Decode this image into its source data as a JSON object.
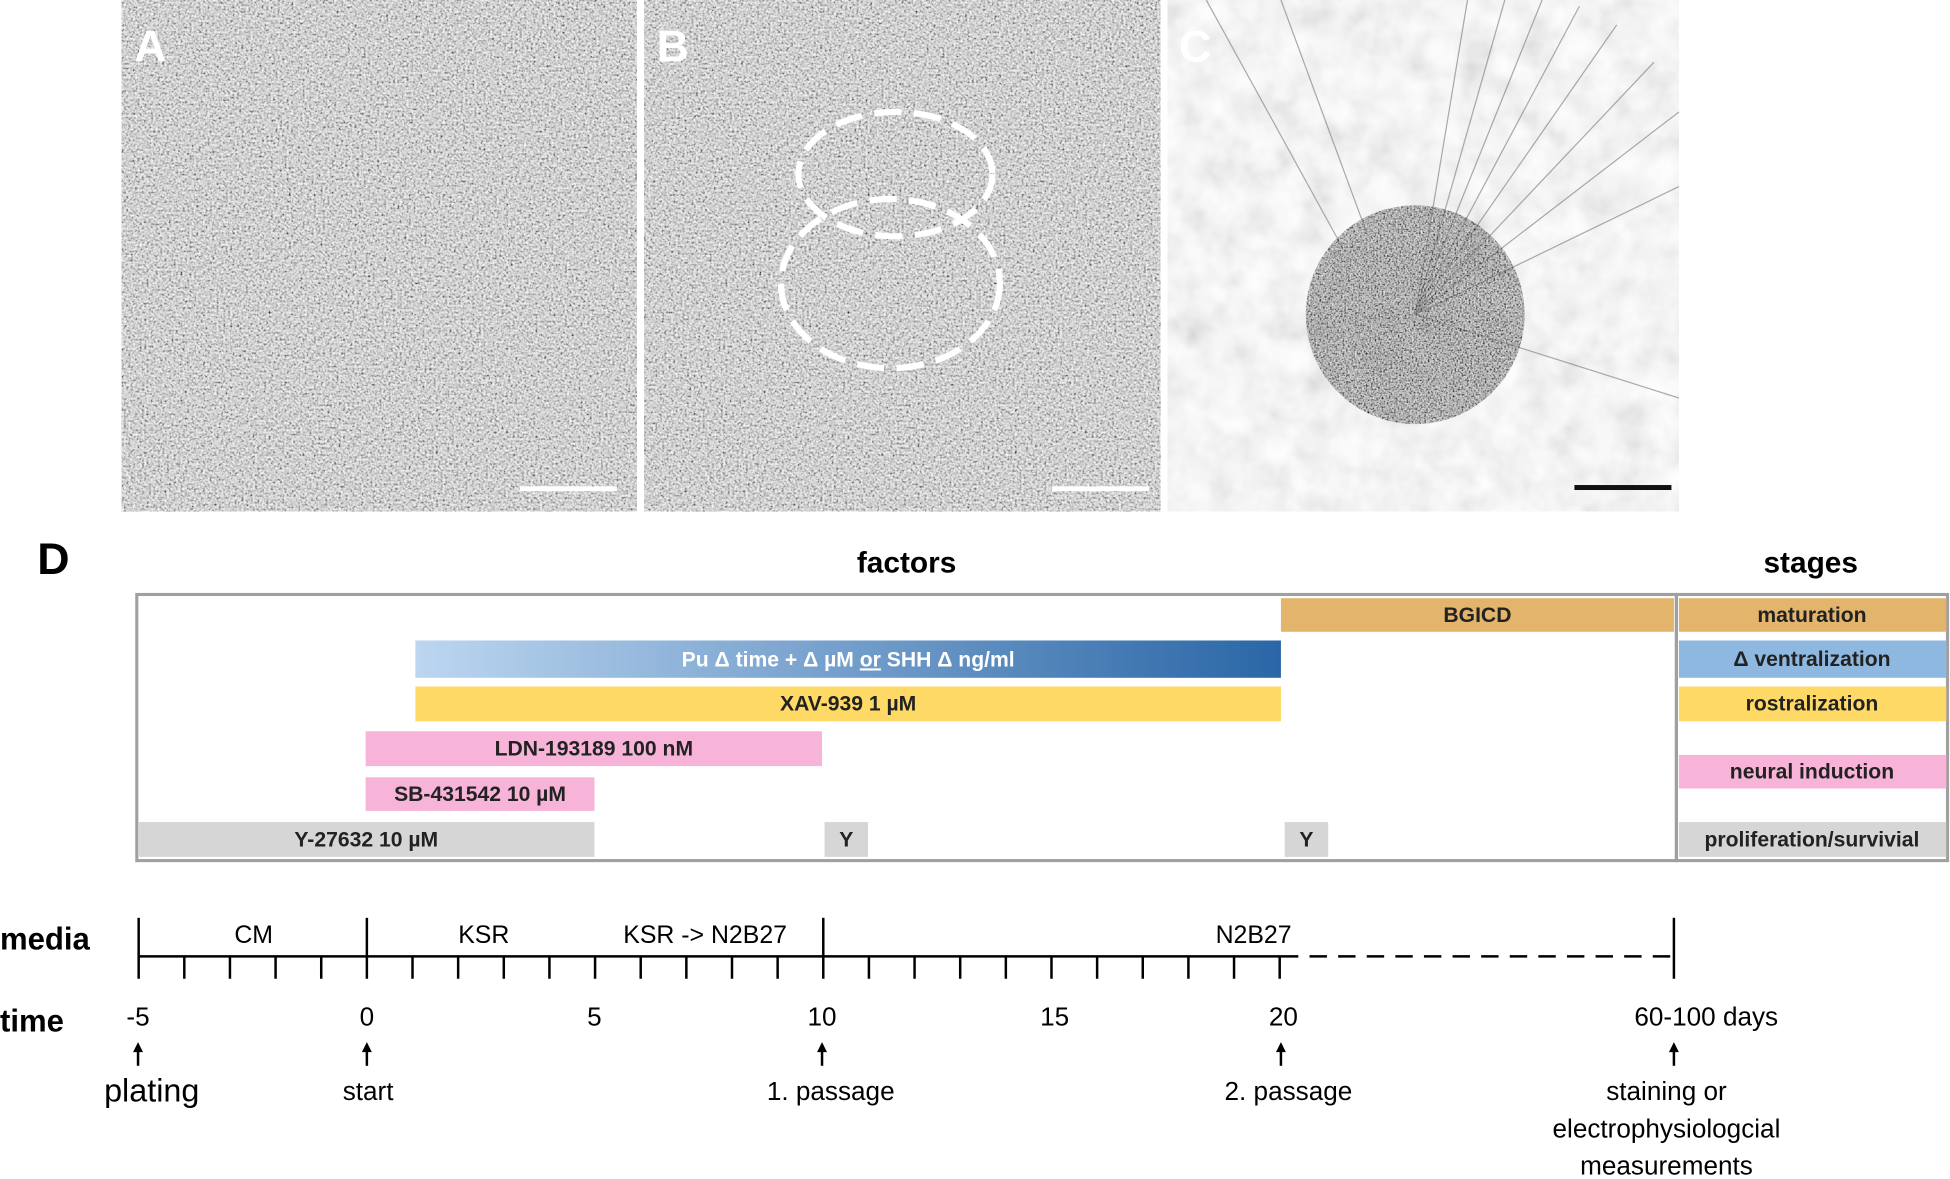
{
  "panels": {
    "a": "A",
    "b": "B",
    "c": "C",
    "d": "D"
  },
  "factors_heading": "factors",
  "stages_heading": "stages",
  "factors": [
    {
      "label": "BGICD"
    },
    {
      "label_parts": [
        "Pu Δ time + Δ µM ",
        "or",
        " SHH Δ ng/ml"
      ]
    },
    {
      "label": "XAV-939 1 µM"
    },
    {
      "label": "LDN-193189 100 nM"
    },
    {
      "label": "SB-431542 10 µM"
    },
    {
      "label": "Y-27632 10 µM"
    },
    {
      "label": "Y"
    },
    {
      "label": "Y"
    }
  ],
  "stages": [
    "maturation",
    "Δ ventralization",
    "rostralization",
    "neural induction",
    "proliferation/survivial"
  ],
  "media": {
    "title": "media",
    "segments": [
      "CM",
      "KSR",
      "KSR  ->  N2B27",
      "N2B27"
    ]
  },
  "time": {
    "title": "time",
    "ticks": [
      "-5",
      "0",
      "5",
      "10",
      "15",
      "20",
      "60-100 days"
    ]
  },
  "events": [
    [
      "plating"
    ],
    [
      "start"
    ],
    [
      "1. passage"
    ],
    [
      "2. passage"
    ],
    [
      "staining or",
      "electrophysiologcial",
      "measurements"
    ]
  ]
}
